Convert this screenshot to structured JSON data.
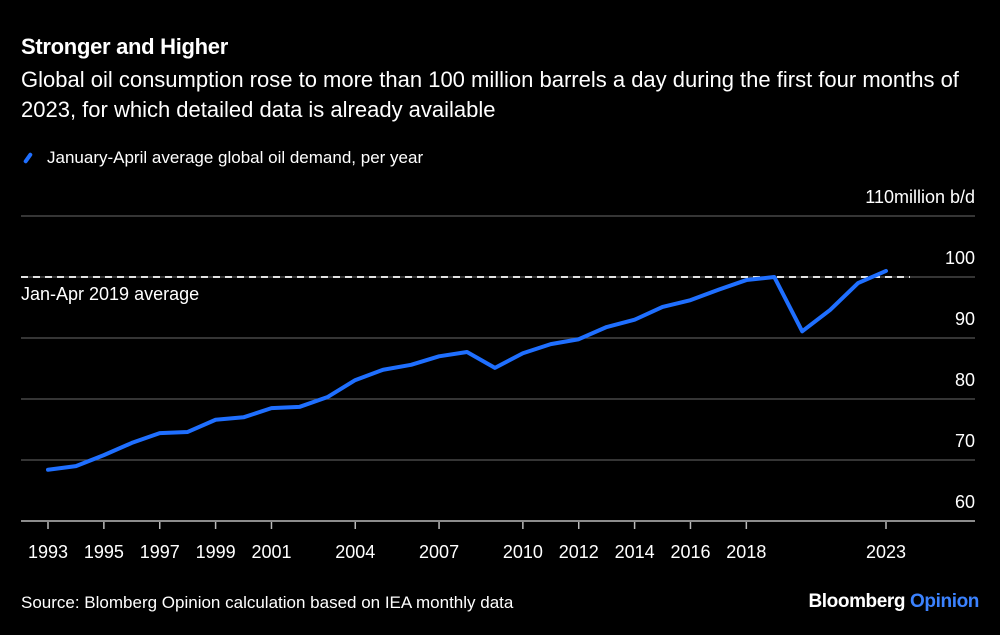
{
  "chart_data": {
    "type": "line",
    "title": "Stronger and Higher",
    "subtitle": "Global oil consumption rose to more than 100 million barrels a day during the first four months of 2023, for which detailed data is already available",
    "series": [
      {
        "name": "January-April average global oil demand, per year",
        "color": "#1f6fff",
        "x": [
          1993,
          1994,
          1995,
          1996,
          1997,
          1998,
          1999,
          2000,
          2001,
          2002,
          2003,
          2004,
          2005,
          2006,
          2007,
          2008,
          2009,
          2010,
          2011,
          2012,
          2013,
          2014,
          2015,
          2016,
          2017,
          2018,
          2019,
          2020,
          2021,
          2022,
          2023
        ],
        "values": [
          68.4,
          69.0,
          70.8,
          72.8,
          74.4,
          74.6,
          76.6,
          77.0,
          78.5,
          78.7,
          80.3,
          83.1,
          84.8,
          85.6,
          87.0,
          87.7,
          85.1,
          87.5,
          89.0,
          89.8,
          91.8,
          93.0,
          95.1,
          96.2,
          97.9,
          99.5,
          100.0,
          91.1,
          94.6,
          99.0,
          101.0
        ]
      }
    ],
    "reference_line": {
      "value": 100.0,
      "label": "Jan-Apr 2019 average",
      "style": "dashed",
      "color": "#ffffff"
    },
    "y_ticks": [
      60,
      70,
      80,
      90,
      100,
      110
    ],
    "y_unit": "million b/d",
    "ylim": [
      60,
      110
    ],
    "x_ticks": [
      1993,
      1995,
      1997,
      1999,
      2001,
      2004,
      2007,
      2010,
      2012,
      2014,
      2016,
      2018,
      2023
    ],
    "xlim": [
      1993,
      2023
    ],
    "grid": "horizontal",
    "y_axis_side": "right",
    "legend_placement": "top-left"
  },
  "source": "Source: Blomberg Opinion calculation based on IEA monthly data",
  "logo": {
    "brand": "Bloomberg",
    "section": "Opinion"
  },
  "colors": {
    "background": "#000000",
    "line": "#1f6fff",
    "grid": "#555555"
  }
}
